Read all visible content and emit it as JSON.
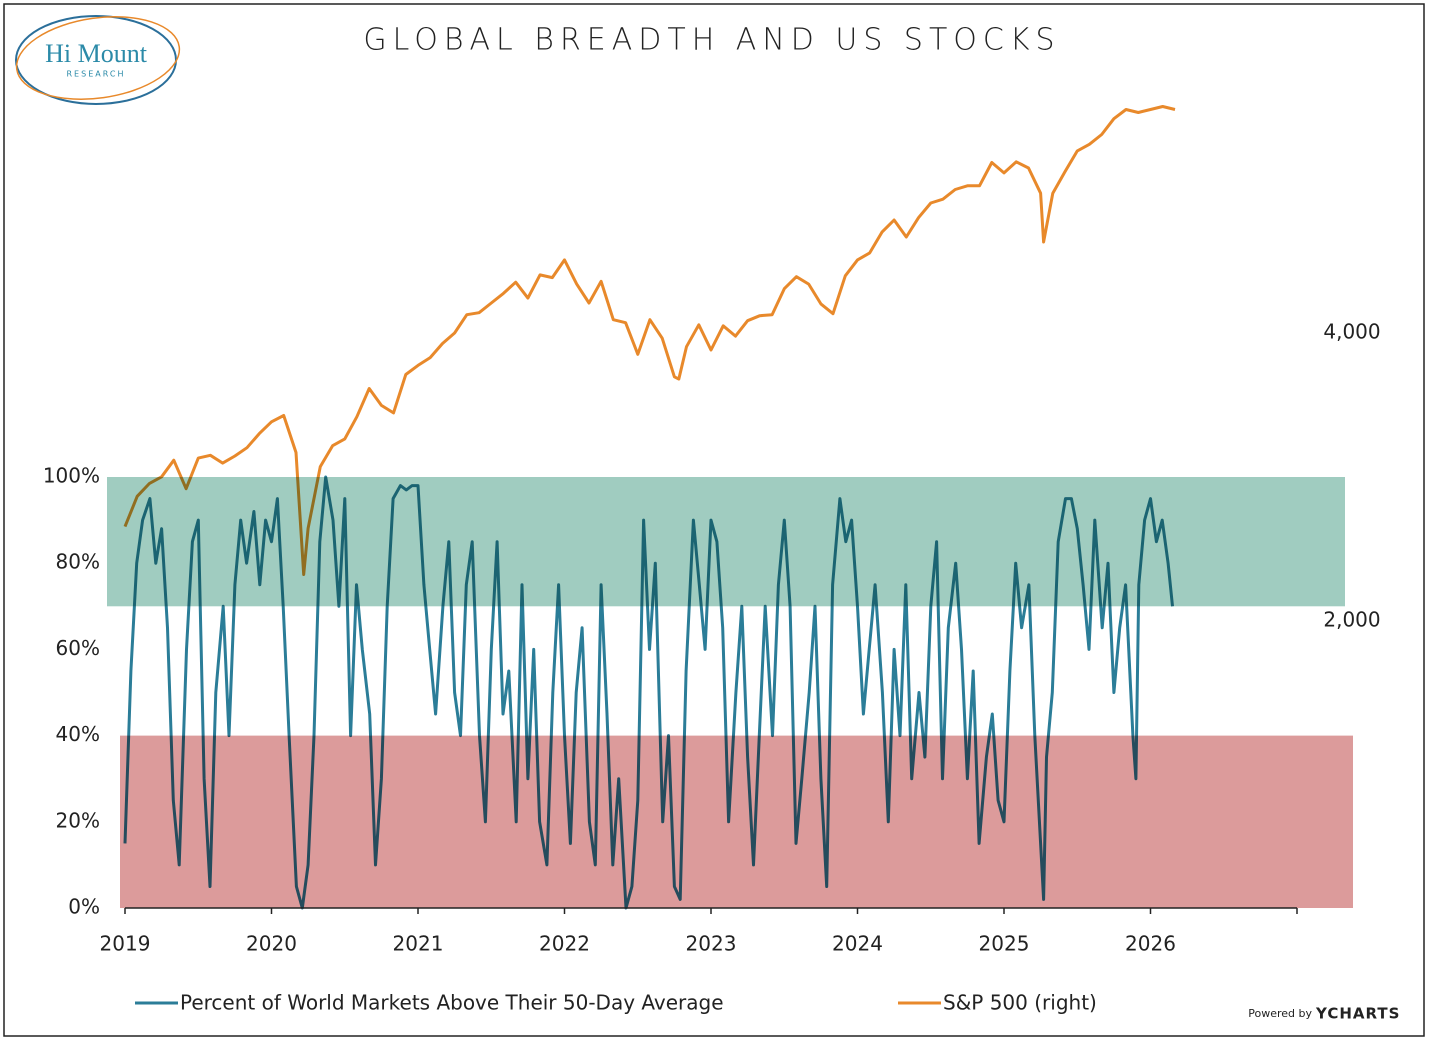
{
  "logo": {
    "name": "Hi Mount",
    "sub": "RESEARCH"
  },
  "credit": {
    "prefix": "Powered by",
    "brand": "YCHARTS"
  },
  "chart_data": {
    "type": "line",
    "title": "GLOBAL BREADTH AND US STOCKS",
    "xlim": [
      2019,
      2027
    ],
    "xticks": [
      2019,
      2020,
      2021,
      2022,
      2023,
      2024,
      2025,
      2026
    ],
    "ylim": [
      0,
      100
    ],
    "yticks": [
      {
        "value": 0,
        "label": "0%"
      },
      {
        "value": 20,
        "label": "20%"
      },
      {
        "value": 40,
        "label": "40%"
      },
      {
        "value": 60,
        "label": "60%"
      },
      {
        "value": 80,
        "label": "80%"
      },
      {
        "value": 100,
        "label": "100%"
      }
    ],
    "y2lim": [
      1000,
      8000
    ],
    "y2scale": "log",
    "y2ticks": [
      {
        "value": 2000,
        "label": "2,000"
      },
      {
        "value": 4000,
        "label": "4,000"
      }
    ],
    "grid": false,
    "legend": "bottom",
    "bands": [
      {
        "from": 70,
        "to": 100,
        "color": "#8fc3b5"
      },
      {
        "from": 0,
        "to": 40,
        "color": "#d68a8a"
      }
    ],
    "series": [
      {
        "name": "Percent of World Markets Above Their 50-Day Average",
        "color": "#2b7d98",
        "axis": "y",
        "x": [
          2019.0,
          2019.04,
          2019.08,
          2019.12,
          2019.17,
          2019.21,
          2019.25,
          2019.29,
          2019.33,
          2019.37,
          2019.42,
          2019.46,
          2019.5,
          2019.54,
          2019.58,
          2019.62,
          2019.67,
          2019.71,
          2019.75,
          2019.79,
          2019.83,
          2019.88,
          2019.92,
          2019.96,
          2020.0,
          2020.04,
          2020.08,
          2020.12,
          2020.17,
          2020.21,
          2020.25,
          2020.29,
          2020.33,
          2020.37,
          2020.42,
          2020.46,
          2020.5,
          2020.54,
          2020.58,
          2020.62,
          2020.67,
          2020.71,
          2020.75,
          2020.79,
          2020.83,
          2020.88,
          2020.92,
          2020.96,
          2021.0,
          2021.04,
          2021.08,
          2021.12,
          2021.17,
          2021.21,
          2021.25,
          2021.29,
          2021.33,
          2021.37,
          2021.42,
          2021.46,
          2021.5,
          2021.54,
          2021.58,
          2021.62,
          2021.67,
          2021.71,
          2021.75,
          2021.79,
          2021.83,
          2021.88,
          2021.92,
          2021.96,
          2022.0,
          2022.04,
          2022.08,
          2022.12,
          2022.17,
          2022.21,
          2022.25,
          2022.29,
          2022.33,
          2022.37,
          2022.42,
          2022.46,
          2022.5,
          2022.54,
          2022.58,
          2022.62,
          2022.67,
          2022.71,
          2022.75,
          2022.79,
          2022.83,
          2022.88,
          2022.92,
          2022.96,
          2023.0,
          2023.04,
          2023.08,
          2023.12,
          2023.17,
          2023.21,
          2023.25,
          2023.29,
          2023.33,
          2023.37,
          2023.42,
          2023.46,
          2023.5,
          2023.54,
          2023.58,
          2023.62,
          2023.67,
          2023.71,
          2023.75,
          2023.79,
          2023.83,
          2023.88,
          2023.92,
          2023.96,
          2024.0,
          2024.04,
          2024.08,
          2024.12,
          2024.17,
          2024.21,
          2024.25,
          2024.29,
          2024.33,
          2024.37,
          2024.42,
          2024.46,
          2024.5,
          2024.54,
          2024.58,
          2024.62,
          2024.67,
          2024.71,
          2024.75,
          2024.79,
          2024.83,
          2024.88,
          2024.92,
          2024.96,
          2025.0,
          2025.04,
          2025.08,
          2025.12,
          2025.17,
          2025.21,
          2025.25,
          2025.27,
          2025.29,
          2025.33,
          2025.37,
          2025.42,
          2025.46,
          2025.5,
          2025.54,
          2025.58,
          2025.62,
          2025.67,
          2025.71,
          2025.75,
          2025.79,
          2025.83,
          2025.88,
          2025.9,
          2025.92,
          2025.96,
          2026.0,
          2026.04,
          2026.08,
          2026.12,
          2026.15
        ],
        "values": [
          15,
          55,
          80,
          90,
          95,
          80,
          88,
          65,
          25,
          10,
          60,
          85,
          90,
          30,
          5,
          50,
          70,
          40,
          75,
          90,
          80,
          92,
          75,
          90,
          85,
          95,
          70,
          40,
          5,
          0,
          10,
          40,
          85,
          100,
          90,
          70,
          95,
          40,
          75,
          60,
          45,
          10,
          30,
          70,
          95,
          98,
          97,
          98,
          98,
          75,
          60,
          45,
          70,
          85,
          50,
          40,
          75,
          85,
          40,
          20,
          60,
          85,
          45,
          55,
          20,
          75,
          30,
          60,
          20,
          10,
          50,
          75,
          40,
          15,
          50,
          65,
          20,
          10,
          75,
          45,
          10,
          30,
          0,
          5,
          25,
          90,
          60,
          80,
          20,
          40,
          5,
          2,
          55,
          90,
          75,
          60,
          90,
          85,
          65,
          20,
          50,
          70,
          35,
          10,
          40,
          70,
          40,
          75,
          90,
          70,
          15,
          30,
          50,
          70,
          30,
          5,
          75,
          95,
          85,
          90,
          70,
          45,
          60,
          75,
          50,
          20,
          60,
          40,
          75,
          30,
          50,
          35,
          70,
          85,
          30,
          65,
          80,
          60,
          30,
          55,
          15,
          35,
          45,
          25,
          20,
          55,
          80,
          65,
          75,
          40,
          15,
          2,
          35,
          50,
          85,
          95,
          95,
          88,
          75,
          60,
          90,
          65,
          80,
          50,
          65,
          75,
          40,
          30,
          75,
          90,
          95,
          85,
          90,
          80,
          70
        ]
      },
      {
        "name": "S&P 500 (right)",
        "color": "#e8892b",
        "axis": "y2",
        "x": [
          2019.0,
          2019.083,
          2019.167,
          2019.25,
          2019.333,
          2019.417,
          2019.5,
          2019.583,
          2019.667,
          2019.75,
          2019.833,
          2019.917,
          2020.0,
          2020.083,
          2020.167,
          2020.22,
          2020.25,
          2020.333,
          2020.417,
          2020.5,
          2020.583,
          2020.667,
          2020.75,
          2020.833,
          2020.917,
          2021.0,
          2021.083,
          2021.167,
          2021.25,
          2021.333,
          2021.417,
          2021.5,
          2021.583,
          2021.667,
          2021.75,
          2021.833,
          2021.917,
          2022.0,
          2022.083,
          2022.167,
          2022.25,
          2022.333,
          2022.417,
          2022.5,
          2022.583,
          2022.667,
          2022.75,
          2022.78,
          2022.833,
          2022.917,
          2023.0,
          2023.083,
          2023.167,
          2023.25,
          2023.333,
          2023.417,
          2023.5,
          2023.583,
          2023.667,
          2023.75,
          2023.833,
          2023.917,
          2024.0,
          2024.083,
          2024.167,
          2024.25,
          2024.333,
          2024.417,
          2024.5,
          2024.583,
          2024.667,
          2024.75,
          2024.833,
          2024.917,
          2025.0,
          2025.083,
          2025.167,
          2025.25,
          2025.27,
          2025.333,
          2025.417,
          2025.5,
          2025.583,
          2025.667,
          2025.75,
          2025.833,
          2025.917,
          2026.0,
          2026.083,
          2026.167
        ],
        "values": [
          2510,
          2700,
          2785,
          2830,
          2945,
          2750,
          2960,
          2980,
          2925,
          2975,
          3035,
          3140,
          3230,
          3280,
          3000,
          2237,
          2500,
          2900,
          3050,
          3100,
          3270,
          3500,
          3360,
          3300,
          3620,
          3700,
          3770,
          3900,
          4000,
          4180,
          4200,
          4300,
          4400,
          4520,
          4350,
          4600,
          4570,
          4770,
          4500,
          4300,
          4530,
          4130,
          4100,
          3800,
          4130,
          3950,
          3600,
          3580,
          3870,
          4080,
          3840,
          4070,
          3970,
          4120,
          4170,
          4180,
          4450,
          4580,
          4500,
          4290,
          4190,
          4590,
          4770,
          4850,
          5100,
          5250,
          5040,
          5280,
          5470,
          5520,
          5650,
          5700,
          5700,
          6030,
          5880,
          6040,
          5950,
          5600,
          4980,
          5600,
          5900,
          6200,
          6300,
          6450,
          6700,
          6850,
          6800,
          6850,
          6900,
          6850
        ]
      }
    ]
  }
}
